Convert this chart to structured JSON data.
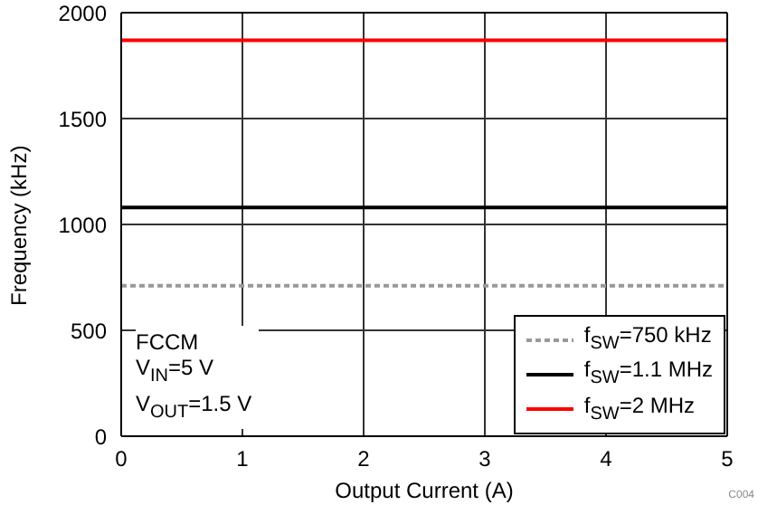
{
  "chart_data": {
    "type": "line",
    "xlabel": "Output Current (A)",
    "ylabel": "Frequency (kHz)",
    "x": [
      0,
      5
    ],
    "series": [
      {
        "name": "f$_{SW}$=750 kHz",
        "color": "#999999",
        "values": [
          710,
          710
        ],
        "line_style": "dashed"
      },
      {
        "name": "f$_{SW}$=1.1 MHz",
        "color": "#000000",
        "values": [
          1080,
          1080
        ]
      },
      {
        "name": "f$_{SW}$=2 MHz",
        "color": "#ff0000",
        "values": [
          1870,
          1870
        ]
      }
    ],
    "xlim": [
      0,
      5
    ],
    "xticks": [
      0,
      1,
      2,
      3,
      4,
      5
    ],
    "ylim": [
      0,
      2000
    ],
    "yticks": [
      0,
      500,
      1000,
      1500,
      2000
    ],
    "grid": true,
    "legend": "bottom right",
    "line_style": "solid",
    "marker": "none",
    "annotations": [
      "FCCM",
      "V$_{IN}$=5 V",
      "V$_{OUT}$=1.5 V",
      "C004"
    ]
  }
}
